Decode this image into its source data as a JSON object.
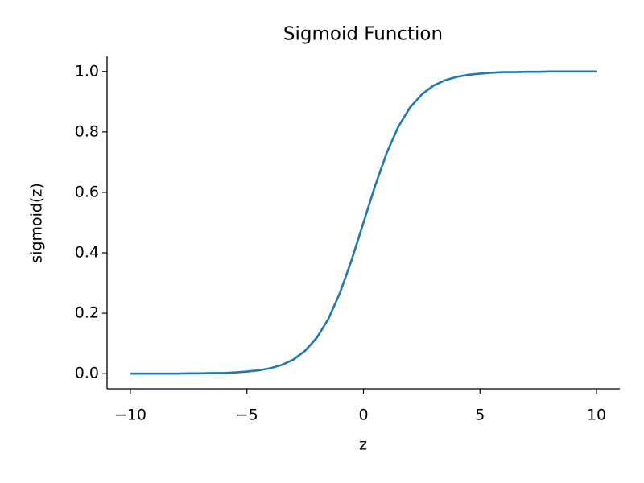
{
  "chart_data": {
    "type": "line",
    "title": "Sigmoid Function",
    "x_label": "z",
    "y_label": "sigmoid(z)",
    "x": [
      -10,
      -9.5,
      -9,
      -8.5,
      -8,
      -7.5,
      -7,
      -6.5,
      -6,
      -5.5,
      -5,
      -4.5,
      -4,
      -3.5,
      -3,
      -2.5,
      -2,
      -1.5,
      -1,
      -0.5,
      0,
      0.5,
      1,
      1.5,
      2,
      2.5,
      3,
      3.5,
      4,
      4.5,
      5,
      5.5,
      6,
      6.5,
      7,
      7.5,
      8,
      8.5,
      9,
      9.5,
      10
    ],
    "series": [
      {
        "name": "sigmoid",
        "color": "#1f77b4",
        "values": [
          0.0,
          0.0,
          0.0,
          0.0,
          0.0,
          0.001,
          0.001,
          0.002,
          0.002,
          0.004,
          0.007,
          0.011,
          0.018,
          0.029,
          0.047,
          0.076,
          0.119,
          0.182,
          0.269,
          0.378,
          0.5,
          0.622,
          0.731,
          0.818,
          0.881,
          0.924,
          0.953,
          0.971,
          0.982,
          0.989,
          0.993,
          0.996,
          0.998,
          0.998,
          0.999,
          0.999,
          1.0,
          1.0,
          1.0,
          1.0,
          1.0
        ]
      }
    ],
    "xlim": [
      -11,
      11
    ],
    "ylim": [
      -0.05,
      1.05
    ],
    "xticks": [
      {
        "value": -10,
        "label": "−10"
      },
      {
        "value": -5,
        "label": "−5"
      },
      0,
      5,
      10
    ],
    "yticks": [
      {
        "value": 0,
        "label": "0.0"
      },
      0.2,
      0.4,
      0.6,
      0.8,
      {
        "value": 1,
        "label": "1.0"
      }
    ],
    "grid": false
  }
}
